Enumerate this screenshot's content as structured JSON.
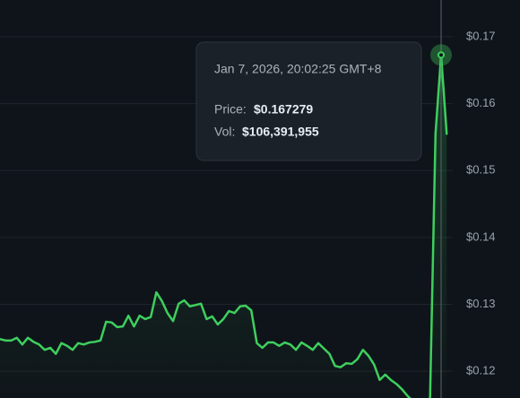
{
  "chart_data": {
    "type": "line",
    "color": "#3ecf5e",
    "grid": true,
    "ylim": [
      0.116,
      0.1755
    ],
    "yticks": [
      {
        "value": 0.12,
        "label": "$0.12"
      },
      {
        "value": 0.13,
        "label": "$0.13"
      },
      {
        "value": 0.14,
        "label": "$0.14"
      },
      {
        "value": 0.15,
        "label": "$0.15"
      },
      {
        "value": 0.16,
        "label": "$0.16"
      },
      {
        "value": 0.17,
        "label": "$0.17"
      }
    ],
    "values": [
      0.1248,
      0.1246,
      0.1246,
      0.125,
      0.124,
      0.125,
      0.1244,
      0.124,
      0.1232,
      0.1235,
      0.1226,
      0.1242,
      0.1238,
      0.1232,
      0.1242,
      0.124,
      0.1243,
      0.1244,
      0.1246,
      0.1274,
      0.1273,
      0.1266,
      0.1267,
      0.1283,
      0.1267,
      0.1283,
      0.1278,
      0.1281,
      0.1318,
      0.1305,
      0.1287,
      0.1275,
      0.1301,
      0.1306,
      0.1297,
      0.1299,
      0.1301,
      0.1278,
      0.1282,
      0.127,
      0.1278,
      0.129,
      0.1287,
      0.1297,
      0.1298,
      0.1291,
      0.1242,
      0.1235,
      0.1243,
      0.1243,
      0.1238,
      0.1243,
      0.124,
      0.1232,
      0.1243,
      0.1238,
      0.1232,
      0.1242,
      0.1234,
      0.1226,
      0.1208,
      0.1206,
      0.1212,
      0.1211,
      0.1218,
      0.1232,
      0.1223,
      0.121,
      0.1187,
      0.1195,
      0.1187,
      0.1181,
      0.1173,
      0.1163,
      0.1155,
      0.115,
      0.115,
      0.115,
      0.1555,
      0.167279,
      0.1555
    ],
    "tooltip": {
      "date": "Jan 7, 2026, 20:02:25 GMT+8",
      "price_label": "Price:",
      "price": "$0.167279",
      "vol_label": "Vol:",
      "volume": "$106,391,955"
    }
  }
}
